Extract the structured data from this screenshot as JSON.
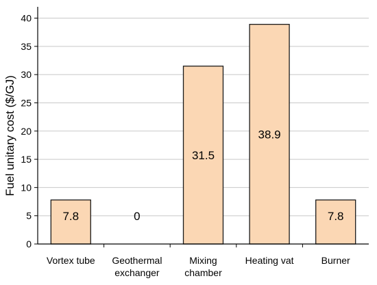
{
  "colors": {
    "bar_fill": "#fbd7b4",
    "bar_stroke": "#1a1a1a",
    "grid": "#c8c8c8",
    "axis": "#000000",
    "background": "#ffffff"
  },
  "chart_data": {
    "type": "bar",
    "categories": [
      [
        "Vortex tube"
      ],
      [
        "Geothermal",
        "exchanger"
      ],
      [
        "Mixing",
        "chamber"
      ],
      [
        "Heating vat"
      ],
      [
        "Burner"
      ]
    ],
    "values": [
      7.8,
      0,
      31.5,
      38.9,
      7.8
    ],
    "data_labels": [
      "7.8",
      "0",
      "31.5",
      "38.9",
      "7.8"
    ],
    "ylabel": "Fuel unitary cost ($/GJ)",
    "xlabel": "",
    "ylim": [
      0,
      42
    ],
    "yticks": [
      0,
      5,
      10,
      15,
      20,
      25,
      30,
      35,
      40
    ],
    "grid": true,
    "legend": "none"
  }
}
